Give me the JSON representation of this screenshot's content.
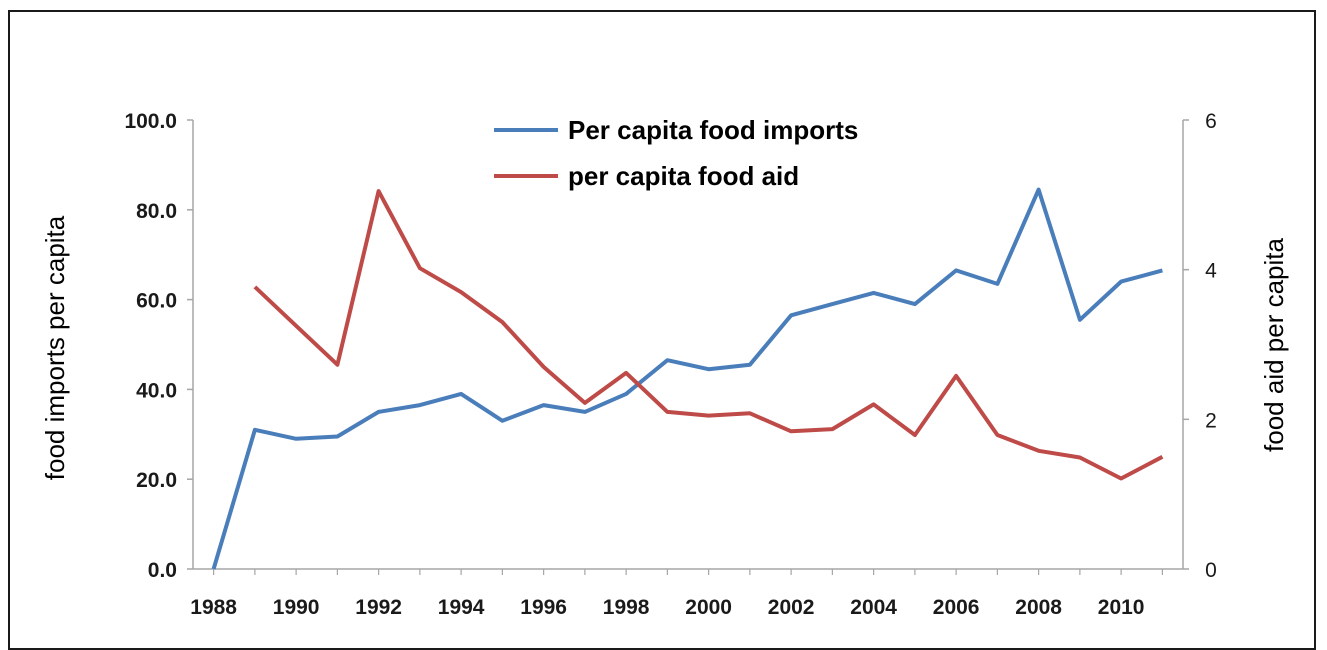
{
  "chart_data": {
    "type": "line",
    "title": "",
    "x": [
      1988,
      1989,
      1990,
      1991,
      1992,
      1993,
      1994,
      1995,
      1996,
      1997,
      1998,
      1999,
      2000,
      2001,
      2002,
      2003,
      2004,
      2005,
      2006,
      2007,
      2008,
      2009,
      2010,
      2011
    ],
    "x_tick_labels": [
      "1988",
      "1990",
      "1992",
      "1994",
      "1996",
      "1998",
      "2000",
      "2002",
      "2004",
      "2006",
      "2008",
      "2010"
    ],
    "ylabel_left": "food imports per capita",
    "ylabel_right": "food aid per capita",
    "ylim_left": [
      0,
      100
    ],
    "ylim_right": [
      0,
      6
    ],
    "y_ticks_left": [
      "0.0",
      "20.0",
      "40.0",
      "60.0",
      "80.0",
      "100.0"
    ],
    "y_ticks_right": [
      "0",
      "2",
      "4",
      "6"
    ],
    "grid": false,
    "legend_position": "top-center",
    "series": [
      {
        "name": "Per capita food imports",
        "axis": "left",
        "color": "#4a7ebb",
        "values": [
          0,
          31,
          29,
          29.5,
          35,
          36.5,
          39,
          33,
          36.5,
          35,
          39,
          46.5,
          44.5,
          45.5,
          56.5,
          59,
          61.5,
          59,
          66.5,
          63.5,
          84.5,
          55.5,
          64,
          66.5
        ]
      },
      {
        "name": "per capita food aid",
        "axis": "right",
        "color": "#be4b48",
        "values": [
          null,
          3.77,
          3.25,
          2.73,
          5.05,
          4.02,
          3.7,
          3.3,
          2.7,
          2.22,
          2.62,
          2.1,
          2.05,
          2.08,
          1.84,
          1.87,
          2.2,
          1.79,
          2.58,
          1.79,
          1.58,
          1.49,
          1.21,
          1.5
        ]
      }
    ]
  }
}
